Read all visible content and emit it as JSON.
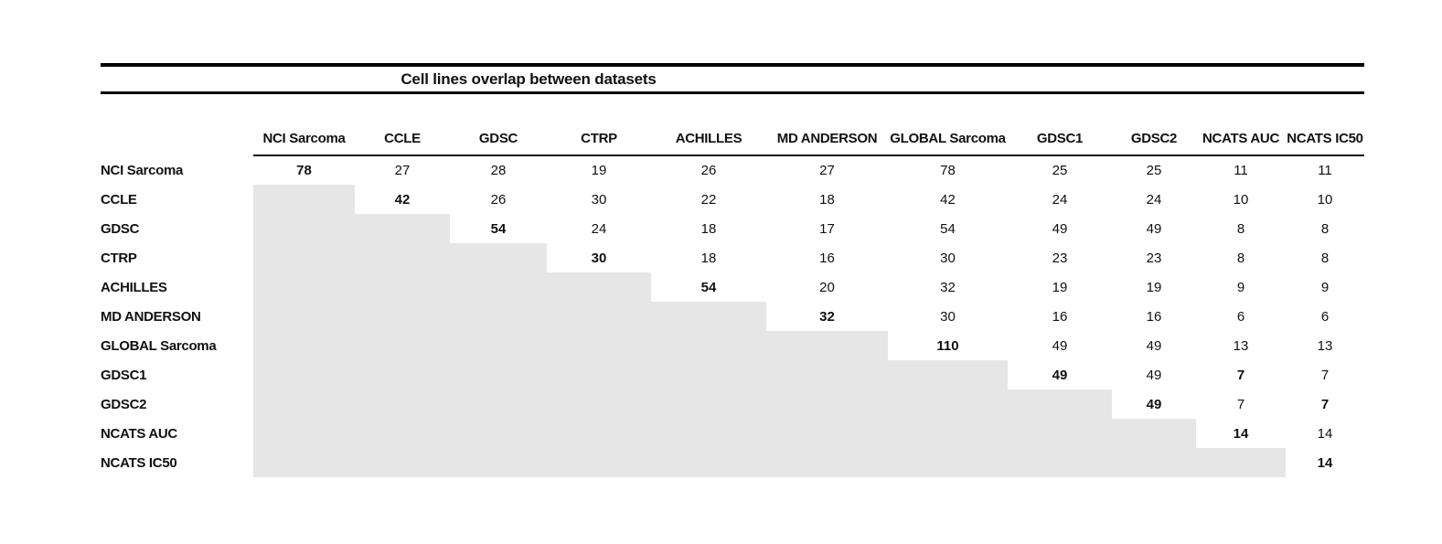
{
  "title": "Cell lines overlap between datasets",
  "colors": {
    "shaded_cell": "#e7e6e6",
    "rule_color": "#000000",
    "text_color": "#111111",
    "background": "#ffffff"
  },
  "chart_data": {
    "type": "table",
    "title": "Cell lines overlap between datasets",
    "columns": [
      "NCI Sarcoma",
      "CCLE",
      "GDSC",
      "CTRP",
      "ACHILLES",
      "MD ANDERSON",
      "GLOBAL Sarcoma",
      "GDSC1",
      "GDSC2",
      "NCATS AUC",
      "NCATS IC50"
    ],
    "rows": [
      {
        "label": "NCI Sarcoma",
        "values": [
          78,
          27,
          28,
          19,
          26,
          27,
          78,
          25,
          25,
          11,
          11
        ]
      },
      {
        "label": "CCLE",
        "values": [
          null,
          42,
          26,
          30,
          22,
          18,
          42,
          24,
          24,
          10,
          10
        ]
      },
      {
        "label": "GDSC",
        "values": [
          null,
          null,
          54,
          24,
          18,
          17,
          54,
          49,
          49,
          8,
          8
        ]
      },
      {
        "label": "CTRP",
        "values": [
          null,
          null,
          null,
          30,
          18,
          16,
          30,
          23,
          23,
          8,
          8
        ]
      },
      {
        "label": "ACHILLES",
        "values": [
          null,
          null,
          null,
          null,
          54,
          20,
          32,
          19,
          19,
          9,
          9
        ]
      },
      {
        "label": "MD ANDERSON",
        "values": [
          null,
          null,
          null,
          null,
          null,
          32,
          30,
          16,
          16,
          6,
          6
        ]
      },
      {
        "label": "GLOBAL Sarcoma",
        "values": [
          null,
          null,
          null,
          null,
          null,
          null,
          110,
          49,
          49,
          13,
          13
        ]
      },
      {
        "label": "GDSC1",
        "values": [
          null,
          null,
          null,
          null,
          null,
          null,
          null,
          49,
          49,
          7,
          7
        ]
      },
      {
        "label": "GDSC2",
        "values": [
          null,
          null,
          null,
          null,
          null,
          null,
          null,
          null,
          49,
          7,
          7
        ]
      },
      {
        "label": "NCATS AUC",
        "values": [
          null,
          null,
          null,
          null,
          null,
          null,
          null,
          null,
          null,
          14,
          14
        ]
      },
      {
        "label": "NCATS IC50",
        "values": [
          null,
          null,
          null,
          null,
          null,
          null,
          null,
          null,
          null,
          null,
          14
        ]
      }
    ],
    "bold_cells": [
      [
        0,
        0
      ],
      [
        1,
        1
      ],
      [
        2,
        2
      ],
      [
        3,
        3
      ],
      [
        4,
        4
      ],
      [
        5,
        5
      ],
      [
        6,
        6
      ],
      [
        7,
        7
      ],
      [
        8,
        8
      ],
      [
        9,
        9
      ],
      [
        10,
        10
      ],
      [
        7,
        9
      ],
      [
        8,
        10
      ]
    ],
    "shaded_region": "lower-triangle"
  }
}
